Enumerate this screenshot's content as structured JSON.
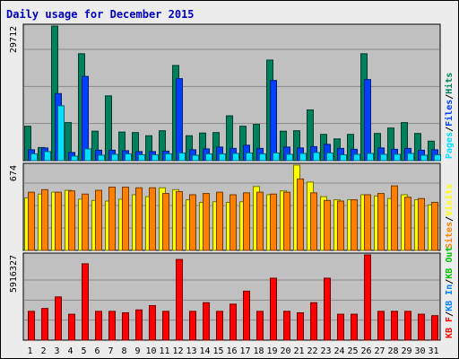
{
  "title": "Daily usage for December 2015",
  "colors": {
    "title": "#0000c0",
    "hits": "#00805c",
    "files": "#0040ff",
    "pages": "#00e0ff",
    "visits": "#ffff00",
    "sites": "#ff8000",
    "kbin": "#0080ff",
    "kbout": "#00c000",
    "kbf": "#ff0000",
    "slash": "#000000",
    "weekend_day": "#008040",
    "weekday": "#000000"
  },
  "chart_data": [
    {
      "type": "bar",
      "name": "hits-files-pages",
      "y_axis_label": "29712",
      "ylim": [
        0,
        29712
      ],
      "grid": true,
      "legend": [
        {
          "text": "Pages",
          "color_key": "pages"
        },
        {
          "text": "Files",
          "color_key": "files"
        },
        {
          "text": "Hits",
          "color_key": "hits"
        }
      ],
      "series": [
        {
          "name": "Hits",
          "color_key": "hits",
          "values": [
            7600,
            2900,
            29700,
            8400,
            23600,
            6500,
            14300,
            6300,
            6200,
            5500,
            6600,
            21000,
            5500,
            6100,
            6200,
            9900,
            7600,
            8000,
            22200,
            6500,
            6600,
            11200,
            5800,
            4800,
            5800,
            23600,
            6000,
            7200,
            8400,
            6000,
            4300
          ]
        },
        {
          "name": "Files",
          "color_key": "files",
          "values": [
            2400,
            2800,
            14800,
            1800,
            18600,
            2300,
            2300,
            2200,
            2000,
            2000,
            2100,
            18100,
            2400,
            2600,
            3000,
            2700,
            3400,
            2700,
            17700,
            3000,
            2800,
            3100,
            3600,
            2700,
            2500,
            17900,
            2800,
            2500,
            2700,
            2300,
            2400
          ]
        },
        {
          "name": "Pages",
          "color_key": "pages",
          "values": [
            1500,
            2000,
            12100,
            1000,
            2600,
            1200,
            1400,
            1500,
            1300,
            1300,
            1500,
            1700,
            1200,
            1500,
            1500,
            1600,
            1700,
            1500,
            1700,
            1400,
            1600,
            1800,
            1700,
            1300,
            1400,
            1600,
            1400,
            1400,
            1600,
            1200,
            1300
          ]
        }
      ]
    },
    {
      "type": "bar",
      "name": "visits-sites",
      "y_axis_label": "674",
      "ylim": [
        0,
        674
      ],
      "grid": true,
      "legend": [
        {
          "text": "Sites",
          "color_key": "sites"
        },
        {
          "text": "Visits",
          "color_key": "visits"
        }
      ],
      "series": [
        {
          "name": "Visits",
          "color_key": "visits",
          "values": [
            415,
            445,
            460,
            475,
            405,
            395,
            390,
            405,
            440,
            425,
            495,
            480,
            400,
            380,
            385,
            380,
            385,
            505,
            440,
            470,
            674,
            540,
            425,
            400,
            400,
            440,
            430,
            410,
            440,
            400,
            360
          ]
        },
        {
          "name": "Sites",
          "color_key": "sites",
          "values": [
            460,
            480,
            460,
            470,
            445,
            475,
            500,
            500,
            495,
            495,
            450,
            465,
            440,
            450,
            460,
            440,
            455,
            460,
            445,
            460,
            565,
            455,
            395,
            390,
            400,
            440,
            450,
            510,
            420,
            410,
            380
          ]
        }
      ]
    },
    {
      "type": "bar",
      "name": "kbytes",
      "y_axis_label": "5916327",
      "ylim": [
        0,
        5916327
      ],
      "grid": true,
      "legend": [
        {
          "text": "KB F",
          "color_key": "kbf"
        },
        {
          "text": "KB In",
          "color_key": "kbin"
        },
        {
          "text": "KB Out",
          "color_key": "kbout"
        }
      ],
      "series": [
        {
          "name": "KB F",
          "color_key": "kbf",
          "values": [
            2000000,
            2200000,
            3000000,
            1800000,
            5300000,
            2000000,
            2000000,
            1900000,
            2100000,
            2400000,
            2000000,
            5600000,
            2000000,
            2600000,
            2000000,
            2500000,
            3400000,
            2000000,
            4300000,
            2000000,
            1900000,
            2600000,
            4300000,
            1800000,
            1800000,
            5916327,
            2000000,
            2000000,
            2000000,
            1800000,
            1700000
          ]
        }
      ]
    }
  ],
  "x_axis": {
    "labels": [
      "1",
      "2",
      "3",
      "4",
      "5",
      "6",
      "7",
      "8",
      "9",
      "10",
      "11",
      "12",
      "13",
      "14",
      "15",
      "16",
      "17",
      "18",
      "19",
      "20",
      "21",
      "22",
      "23",
      "24",
      "25",
      "26",
      "27",
      "28",
      "29",
      "30",
      "31"
    ],
    "weekend_days": [
      "5",
      "6",
      "12",
      "13",
      "19",
      "20",
      "26",
      "27"
    ]
  }
}
